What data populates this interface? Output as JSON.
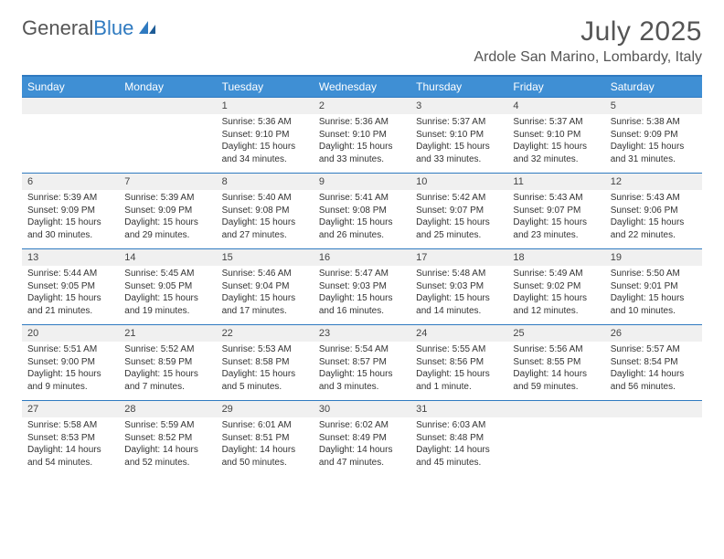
{
  "brand": {
    "part1": "General",
    "part2": "Blue"
  },
  "header": {
    "month_title": "July 2025",
    "location": "Ardole San Marino, Lombardy, Italy"
  },
  "colors": {
    "accent": "#3f8fd4",
    "rule": "#2f7ac0",
    "band": "#f0f0f0",
    "text": "#333333",
    "heading": "#555555"
  },
  "calendar": {
    "day_headers": [
      "Sunday",
      "Monday",
      "Tuesday",
      "Wednesday",
      "Thursday",
      "Friday",
      "Saturday"
    ],
    "weeks": [
      [
        null,
        null,
        {
          "n": "1",
          "sr": "5:36 AM",
          "ss": "9:10 PM",
          "dl": "15 hours and 34 minutes."
        },
        {
          "n": "2",
          "sr": "5:36 AM",
          "ss": "9:10 PM",
          "dl": "15 hours and 33 minutes."
        },
        {
          "n": "3",
          "sr": "5:37 AM",
          "ss": "9:10 PM",
          "dl": "15 hours and 33 minutes."
        },
        {
          "n": "4",
          "sr": "5:37 AM",
          "ss": "9:10 PM",
          "dl": "15 hours and 32 minutes."
        },
        {
          "n": "5",
          "sr": "5:38 AM",
          "ss": "9:09 PM",
          "dl": "15 hours and 31 minutes."
        }
      ],
      [
        {
          "n": "6",
          "sr": "5:39 AM",
          "ss": "9:09 PM",
          "dl": "15 hours and 30 minutes."
        },
        {
          "n": "7",
          "sr": "5:39 AM",
          "ss": "9:09 PM",
          "dl": "15 hours and 29 minutes."
        },
        {
          "n": "8",
          "sr": "5:40 AM",
          "ss": "9:08 PM",
          "dl": "15 hours and 27 minutes."
        },
        {
          "n": "9",
          "sr": "5:41 AM",
          "ss": "9:08 PM",
          "dl": "15 hours and 26 minutes."
        },
        {
          "n": "10",
          "sr": "5:42 AM",
          "ss": "9:07 PM",
          "dl": "15 hours and 25 minutes."
        },
        {
          "n": "11",
          "sr": "5:43 AM",
          "ss": "9:07 PM",
          "dl": "15 hours and 23 minutes."
        },
        {
          "n": "12",
          "sr": "5:43 AM",
          "ss": "9:06 PM",
          "dl": "15 hours and 22 minutes."
        }
      ],
      [
        {
          "n": "13",
          "sr": "5:44 AM",
          "ss": "9:05 PM",
          "dl": "15 hours and 21 minutes."
        },
        {
          "n": "14",
          "sr": "5:45 AM",
          "ss": "9:05 PM",
          "dl": "15 hours and 19 minutes."
        },
        {
          "n": "15",
          "sr": "5:46 AM",
          "ss": "9:04 PM",
          "dl": "15 hours and 17 minutes."
        },
        {
          "n": "16",
          "sr": "5:47 AM",
          "ss": "9:03 PM",
          "dl": "15 hours and 16 minutes."
        },
        {
          "n": "17",
          "sr": "5:48 AM",
          "ss": "9:03 PM",
          "dl": "15 hours and 14 minutes."
        },
        {
          "n": "18",
          "sr": "5:49 AM",
          "ss": "9:02 PM",
          "dl": "15 hours and 12 minutes."
        },
        {
          "n": "19",
          "sr": "5:50 AM",
          "ss": "9:01 PM",
          "dl": "15 hours and 10 minutes."
        }
      ],
      [
        {
          "n": "20",
          "sr": "5:51 AM",
          "ss": "9:00 PM",
          "dl": "15 hours and 9 minutes."
        },
        {
          "n": "21",
          "sr": "5:52 AM",
          "ss": "8:59 PM",
          "dl": "15 hours and 7 minutes."
        },
        {
          "n": "22",
          "sr": "5:53 AM",
          "ss": "8:58 PM",
          "dl": "15 hours and 5 minutes."
        },
        {
          "n": "23",
          "sr": "5:54 AM",
          "ss": "8:57 PM",
          "dl": "15 hours and 3 minutes."
        },
        {
          "n": "24",
          "sr": "5:55 AM",
          "ss": "8:56 PM",
          "dl": "15 hours and 1 minute."
        },
        {
          "n": "25",
          "sr": "5:56 AM",
          "ss": "8:55 PM",
          "dl": "14 hours and 59 minutes."
        },
        {
          "n": "26",
          "sr": "5:57 AM",
          "ss": "8:54 PM",
          "dl": "14 hours and 56 minutes."
        }
      ],
      [
        {
          "n": "27",
          "sr": "5:58 AM",
          "ss": "8:53 PM",
          "dl": "14 hours and 54 minutes."
        },
        {
          "n": "28",
          "sr": "5:59 AM",
          "ss": "8:52 PM",
          "dl": "14 hours and 52 minutes."
        },
        {
          "n": "29",
          "sr": "6:01 AM",
          "ss": "8:51 PM",
          "dl": "14 hours and 50 minutes."
        },
        {
          "n": "30",
          "sr": "6:02 AM",
          "ss": "8:49 PM",
          "dl": "14 hours and 47 minutes."
        },
        {
          "n": "31",
          "sr": "6:03 AM",
          "ss": "8:48 PM",
          "dl": "14 hours and 45 minutes."
        },
        null,
        null
      ]
    ],
    "labels": {
      "sunrise": "Sunrise:",
      "sunset": "Sunset:",
      "daylight": "Daylight:"
    }
  }
}
